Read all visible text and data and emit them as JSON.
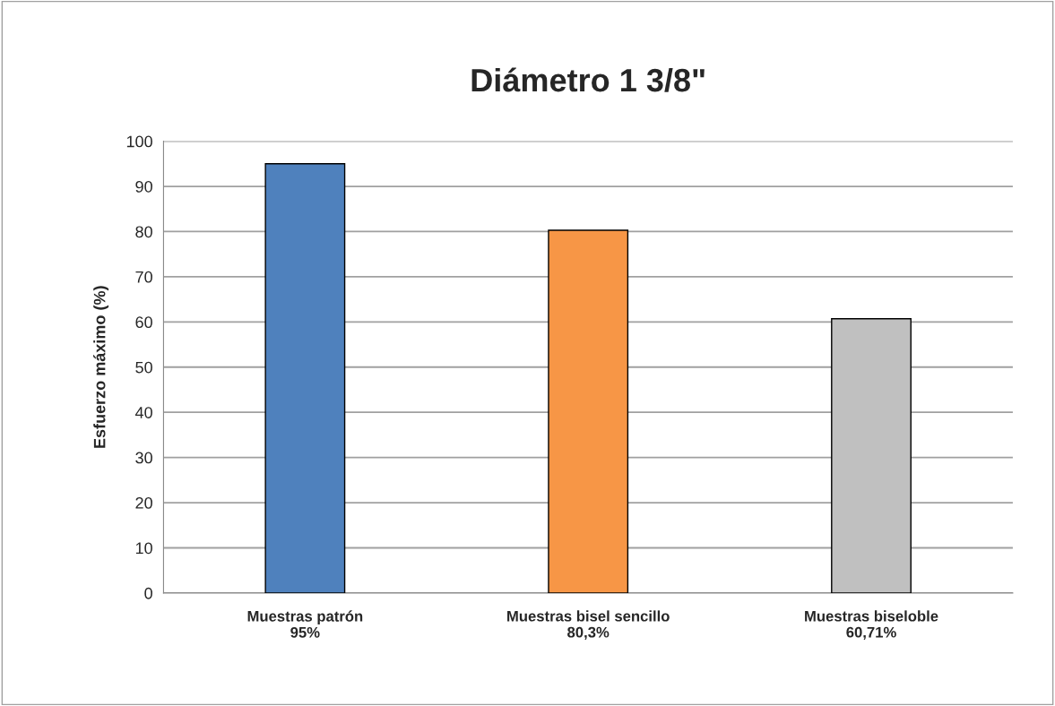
{
  "chart_data": {
    "type": "bar",
    "title": "Diámetro 1 3/8\"",
    "ylabel": "Esfuerzo máximo (%)",
    "categories": [
      "Muestras patrón\n95%",
      "Muestras bisel sencillo\n80,3%",
      "Muestras biseloble\n60,71%"
    ],
    "values": [
      95,
      80.3,
      60.71
    ],
    "colors": [
      "#4f81bd",
      "#f79646",
      "#c0c0c0"
    ],
    "ylim": [
      0,
      100
    ],
    "yticks": [
      0,
      10,
      20,
      30,
      40,
      50,
      60,
      70,
      80,
      90,
      100
    ],
    "grid": "y"
  }
}
